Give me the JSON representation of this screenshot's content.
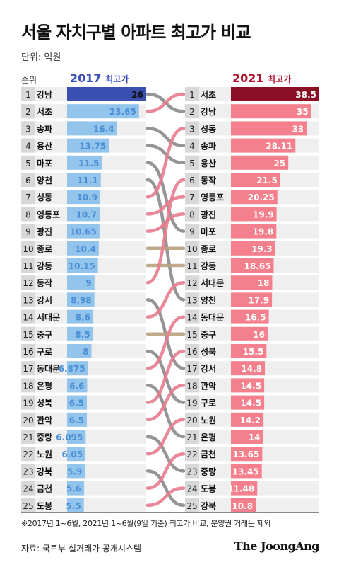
{
  "title": "서울 자치구별 아파트 최고가 비교",
  "unit": "단위: 억원",
  "rank_header": "순위",
  "header_2017": {
    "year": "2017",
    "suffix": "최고가"
  },
  "header_2021": {
    "year": "2021",
    "suffix": "최고가"
  },
  "footnote": "※2017년 1~6월, 2021년 1~6월(9일 기준) 최고가 비교, 분양권 거래는 제외",
  "source": "자료: 국토부 실거래가 공개시스템",
  "brand": "The JoongAng",
  "colors": {
    "bar_2017_top": "#3b4fb0",
    "bar_2017": "#93c4ec",
    "label_2017": "#4a8fd6",
    "bar_2021_top": "#8a0f24",
    "bar_2021": "#f5808d",
    "link_up": "#e67b8e",
    "link_down": "#8a8a8a",
    "link_same": "#b8a27c",
    "rank_box": "#d8d8d8",
    "row_bg": "#efefef"
  },
  "chart_data": {
    "type": "bar",
    "title": "서울 자치구별 아파트 최고가 비교",
    "unit": "억원",
    "series": [
      {
        "name": "2017 최고가",
        "ranks": [
          1,
          2,
          3,
          4,
          5,
          6,
          7,
          8,
          9,
          10,
          11,
          12,
          13,
          14,
          15,
          16,
          17,
          18,
          19,
          20,
          21,
          22,
          23,
          24,
          25
        ],
        "districts": [
          "강남",
          "서초",
          "송파",
          "용산",
          "마포",
          "양천",
          "성동",
          "영등포",
          "광진",
          "종로",
          "강동",
          "동작",
          "강서",
          "서대문",
          "중구",
          "구로",
          "동대문",
          "은평",
          "성북",
          "관악",
          "중랑",
          "노원",
          "강북",
          "금천",
          "도봉"
        ],
        "values": [
          26,
          23.65,
          16.4,
          13.75,
          11.5,
          11.1,
          10.9,
          10.7,
          10.65,
          10.4,
          10.15,
          9,
          8.98,
          8.6,
          8.5,
          8,
          6.875,
          6.6,
          6.5,
          6.5,
          6.095,
          6.05,
          5.9,
          5.6,
          5.5
        ],
        "labels": [
          "26",
          "23.65",
          "16.4",
          "13.75",
          "11.5",
          "11.1",
          "10.9",
          "10.7",
          "10.65",
          "10.4",
          "10.15",
          "9",
          "8.98",
          "8.6",
          "8.5",
          "8",
          "6.875",
          "6.6",
          "6.5",
          "6.5",
          "6.095",
          "6.05",
          "5.9",
          "5.6",
          "5.5"
        ]
      },
      {
        "name": "2021 최고가",
        "ranks": [
          1,
          2,
          3,
          4,
          5,
          6,
          7,
          8,
          9,
          10,
          11,
          12,
          13,
          14,
          15,
          16,
          17,
          18,
          19,
          20,
          21,
          22,
          23,
          24,
          25
        ],
        "districts": [
          "서초",
          "강남",
          "성동",
          "송파",
          "용산",
          "동작",
          "영등포",
          "광진",
          "마포",
          "종로",
          "강동",
          "서대문",
          "양천",
          "동대문",
          "중구",
          "성북",
          "강서",
          "관악",
          "구로",
          "노원",
          "은평",
          "금천",
          "중랑",
          "도봉",
          "강북"
        ],
        "values": [
          38.5,
          35,
          33,
          28.11,
          25,
          21.5,
          20.25,
          19.9,
          19.8,
          19.3,
          18.65,
          18,
          17.9,
          16.5,
          16,
          15.5,
          14.8,
          14.5,
          14.5,
          14.2,
          14,
          13.65,
          13.45,
          11.48,
          10.8
        ],
        "labels": [
          "38.5",
          "35",
          "33",
          "28.11",
          "25",
          "21.5",
          "20.25",
          "19.9",
          "19.8",
          "19.3",
          "18.65",
          "18",
          "17.9",
          "16.5",
          "16",
          "15.5",
          "14.8",
          "14.5",
          "14.5",
          "14.2",
          "14",
          "13.65",
          "13.45",
          "11.48",
          "10.8"
        ]
      }
    ]
  }
}
